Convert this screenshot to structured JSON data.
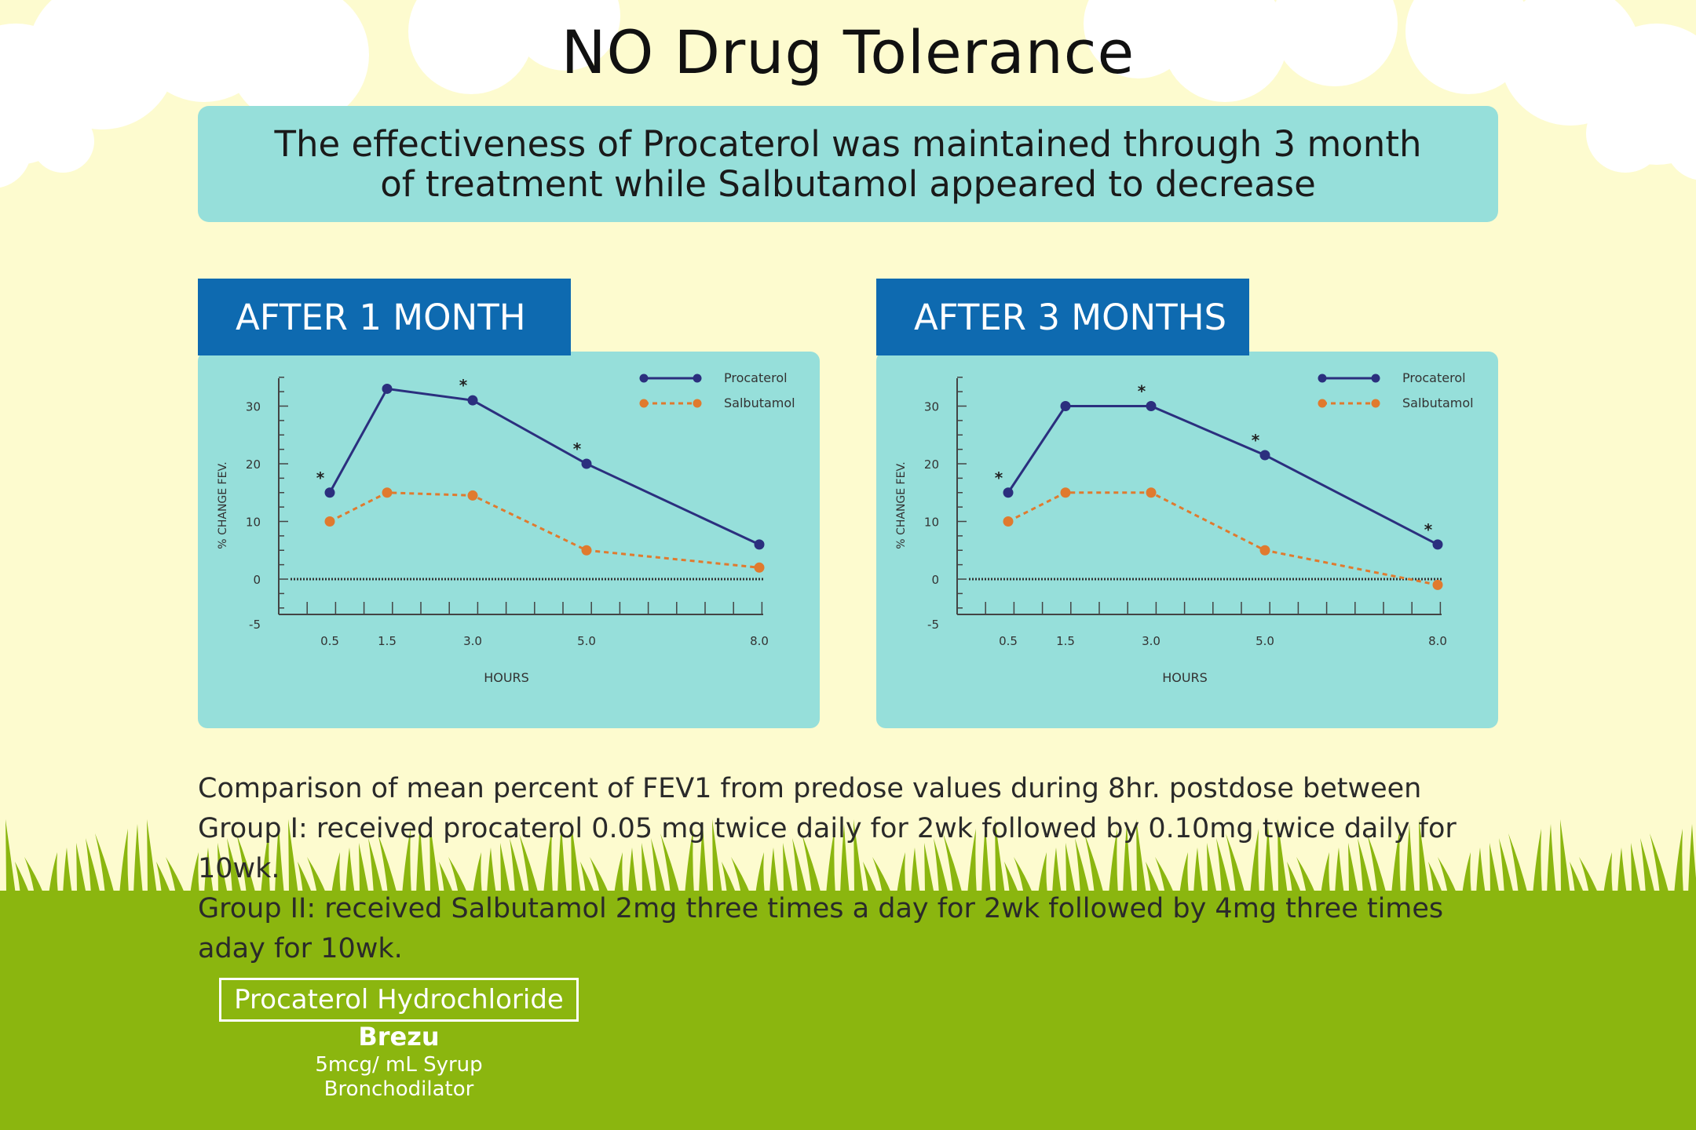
{
  "title": "NO Drug Tolerance",
  "banner": "The effectiveness of Procaterol was maintained through 3 month of treatment while Salbutamol appeared to decrease",
  "description": [
    "Comparison of mean percent of FEV1 from predose values during 8hr. postdose between",
    "Group I: received procaterol 0.05 mg twice daily for 2wk followed by 0.10mg twice daily for 10wk.",
    "Group II: received Salbutamol 2mg three times a day for 2wk followed by 4mg three times aday for 10wk."
  ],
  "brand": {
    "generic": "Procaterol Hydrochloride",
    "name": "Brezu",
    "dose": "5mcg/ mL Syrup",
    "class": "Bronchodilator"
  },
  "colors": {
    "procaterol": "#2b2f7e",
    "salbutamol": "#e07a2e",
    "tab": "#0e6ab0",
    "card": "#96dfda"
  },
  "chart_data": [
    {
      "type": "line",
      "tab_label": "AFTER 1 MONTH",
      "xlabel": "HOURS",
      "ylabel": "% CHANGE FEV.",
      "x_ticks": [
        "0.5",
        "1.5",
        "3.0",
        "5.0",
        "8.0"
      ],
      "y_ticks": [
        "30",
        "20",
        "10",
        "0",
        "-5"
      ],
      "ylim": [
        -5,
        35
      ],
      "series": [
        {
          "name": "Procaterol",
          "style": "solid",
          "x": [
            0.5,
            1.5,
            3.0,
            5.0,
            8.0
          ],
          "y": [
            15,
            33,
            31,
            20,
            6
          ],
          "significant": [
            true,
            false,
            true,
            true,
            false
          ]
        },
        {
          "name": "Salbutamol",
          "style": "dashed",
          "x": [
            0.5,
            1.5,
            3.0,
            5.0,
            8.0
          ],
          "y": [
            10,
            15,
            14.5,
            5,
            2
          ]
        }
      ],
      "significance_marker": "*"
    },
    {
      "type": "line",
      "tab_label": "AFTER 3 MONTHS",
      "xlabel": "HOURS",
      "ylabel": "% CHANGE FEV.",
      "x_ticks": [
        "0.5",
        "1.5",
        "3.0",
        "5.0",
        "8.0"
      ],
      "y_ticks": [
        "30",
        "20",
        "10",
        "0",
        "-5"
      ],
      "ylim": [
        -5,
        35
      ],
      "series": [
        {
          "name": "Procaterol",
          "style": "solid",
          "x": [
            0.5,
            1.5,
            3.0,
            5.0,
            8.0
          ],
          "y": [
            15,
            30,
            30,
            21.5,
            6
          ],
          "significant": [
            true,
            false,
            true,
            true,
            true
          ]
        },
        {
          "name": "Salbutamol",
          "style": "dashed",
          "x": [
            0.5,
            1.5,
            3.0,
            5.0,
            8.0
          ],
          "y": [
            10,
            15,
            15,
            5,
            -1
          ]
        }
      ],
      "significance_marker": "*"
    }
  ]
}
